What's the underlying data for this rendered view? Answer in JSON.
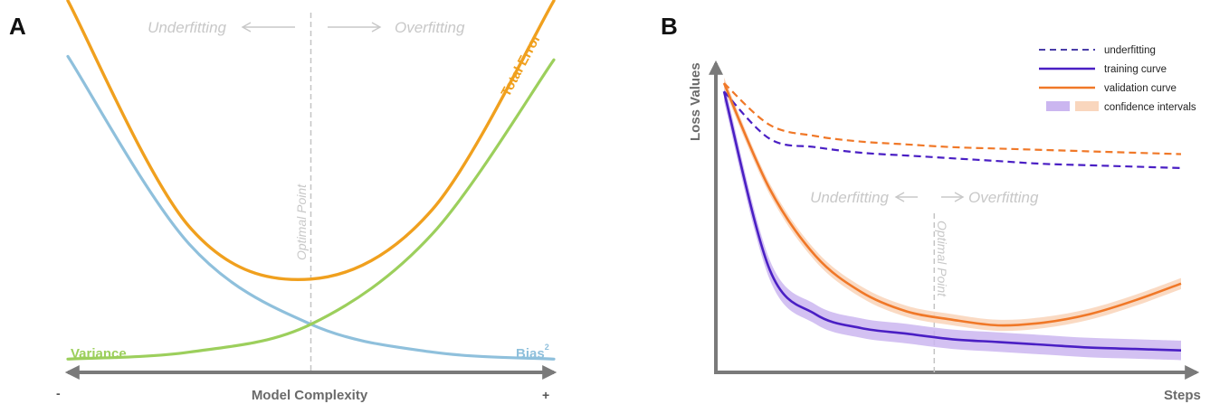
{
  "panels": {
    "a": {
      "letter": "A"
    },
    "b": {
      "letter": "B"
    }
  },
  "colors": {
    "total_error": "#f0a01e",
    "bias": "#8fc0dc",
    "variance": "#9ccf5c",
    "training": "#4a1fc4",
    "validation": "#f07828",
    "training_ci": "#cbb6f0",
    "validation_ci": "#f9d6bd",
    "axis": "#7a7a7a",
    "guide": "#c4c4c4"
  },
  "chart_data": [
    {
      "type": "line",
      "panel": "A",
      "xlabel": "Model Complexity",
      "x_min_label": "-",
      "x_max_label": "+",
      "ylabel": "",
      "x": [
        0,
        0.25,
        0.5,
        0.75,
        1
      ],
      "xlim": [
        0,
        1
      ],
      "ylim": [
        0,
        1
      ],
      "series": [
        {
          "name": "Total Error",
          "label_superscript": "",
          "values": [
            1.05,
            0.4,
            0.25,
            0.45,
            1.05
          ]
        },
        {
          "name": "Bias",
          "label_superscript": "2",
          "values": [
            0.89,
            0.35,
            0.12,
            0.04,
            0.02
          ]
        },
        {
          "name": "Variance",
          "label_superscript": "",
          "values": [
            0.02,
            0.04,
            0.12,
            0.38,
            0.88
          ]
        }
      ],
      "annotations": {
        "left_regime": "Underfitting",
        "right_regime": "Overfitting",
        "optimal": "Optimal Point",
        "optimal_x": 0.5
      },
      "grid": false,
      "legend": "none"
    },
    {
      "type": "line",
      "panel": "B",
      "xlabel": "Steps",
      "ylabel": "Loss Values",
      "x": [
        0,
        0.1,
        0.2,
        0.3,
        0.4,
        0.5,
        0.6,
        0.7,
        0.8,
        0.9,
        1
      ],
      "xlim": [
        0,
        1
      ],
      "ylim": [
        0,
        1
      ],
      "series": [
        {
          "name": "training curve",
          "style": "solid",
          "values": [
            0.97,
            0.33,
            0.17,
            0.12,
            0.1,
            0.08,
            0.07,
            0.06,
            0.05,
            0.045,
            0.04
          ]
        },
        {
          "name": "validation curve",
          "style": "solid",
          "values": [
            1.0,
            0.62,
            0.38,
            0.25,
            0.18,
            0.15,
            0.13,
            0.14,
            0.17,
            0.22,
            0.28
          ]
        },
        {
          "name": "underfitting (training)",
          "style": "dashed",
          "values": [
            0.97,
            0.8,
            0.77,
            0.75,
            0.74,
            0.73,
            0.72,
            0.71,
            0.705,
            0.7,
            0.695
          ]
        },
        {
          "name": "underfitting (validation)",
          "style": "dashed",
          "values": [
            1.0,
            0.85,
            0.81,
            0.79,
            0.78,
            0.77,
            0.765,
            0.76,
            0.755,
            0.75,
            0.745
          ]
        }
      ],
      "confidence_intervals": {
        "training_halfwidth": 0.035,
        "validation_halfwidth": 0.02
      },
      "annotations": {
        "left_regime": "Underfitting",
        "right_regime": "Overfitting",
        "optimal": "Optimal Point",
        "optimal_x": 0.46
      },
      "legend": {
        "placement": "top-right",
        "entries": [
          {
            "label": "underfitting",
            "kind": "dashed"
          },
          {
            "label": "training curve",
            "kind": "line"
          },
          {
            "label": "validation curve",
            "kind": "line"
          },
          {
            "label": "confidence intervals",
            "kind": "swatch"
          }
        ]
      },
      "grid": false
    }
  ]
}
